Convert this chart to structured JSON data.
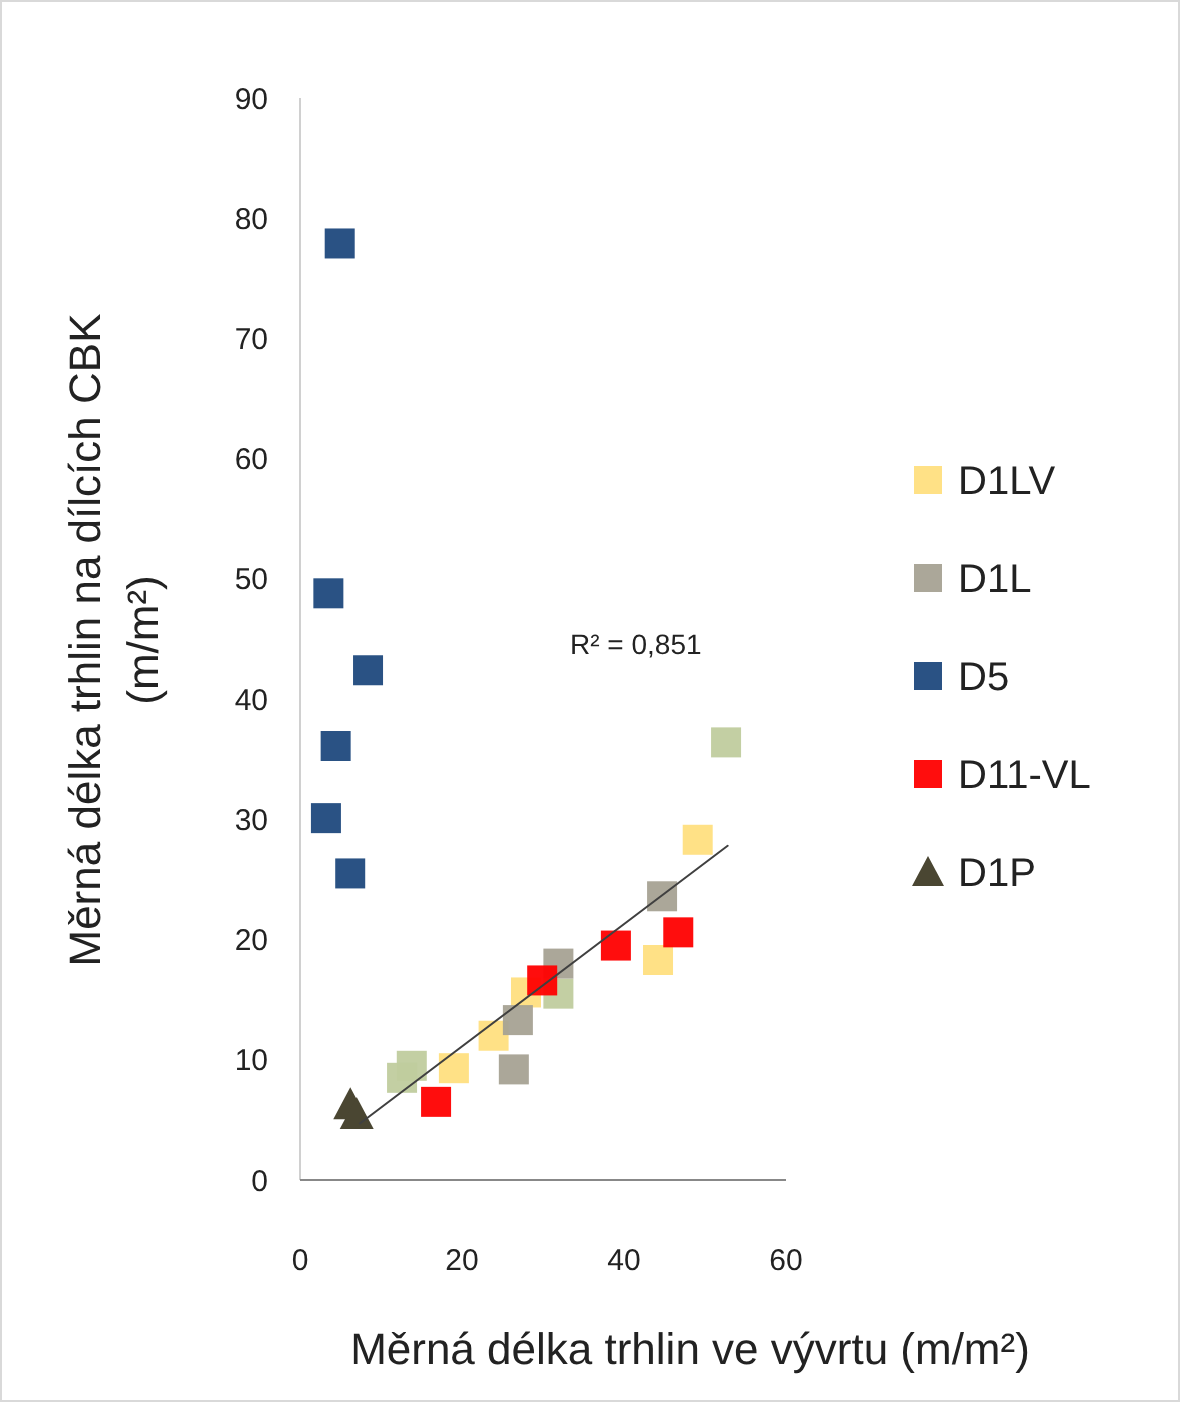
{
  "chart_data": {
    "type": "scatter",
    "xlabel": "Měrná délka trhlin ve vývrtu (m/m²)",
    "ylabel": "Měrná délka trhlin na dílcích CBK (m/m²)",
    "xlim": [
      0,
      60
    ],
    "xticks": [
      0,
      20,
      40,
      60
    ],
    "ylim": [
      0,
      90
    ],
    "yticks": [
      0,
      10,
      20,
      30,
      40,
      50,
      60,
      70,
      80,
      90
    ],
    "grid": false,
    "legend": "right",
    "marker": "square",
    "annotations": [
      "R² = 0,851"
    ],
    "series": [
      {
        "color": "#c0cc9e",
        "x": [
          52.6,
          13.8,
          12.6,
          31.9
        ],
        "values": [
          36.4,
          9.5,
          8.5,
          15.5
        ]
      },
      {
        "name": "D1LV",
        "color": "#ffdf80",
        "x": [
          49.1,
          44.2,
          27.9,
          23.9,
          19.0
        ],
        "values": [
          28.3,
          18.3,
          15.6,
          12.0,
          9.3
        ]
      },
      {
        "name": "D1L",
        "color": "#a6a293",
        "x": [
          44.7,
          31.9,
          26.9,
          26.4
        ],
        "values": [
          23.6,
          18.0,
          13.3,
          9.2
        ]
      },
      {
        "name": "D5",
        "color": "#1f497d",
        "x": [
          4.9,
          3.5,
          8.4,
          4.4,
          3.2,
          6.2
        ],
        "values": [
          77.9,
          48.8,
          42.4,
          36.1,
          30.1,
          25.5
        ]
      },
      {
        "name": "D11-VL",
        "color": "#ff0000",
        "x": [
          39.0,
          46.7,
          29.9,
          16.8
        ],
        "values": [
          19.5,
          20.6,
          16.6,
          6.5
        ]
      },
      {
        "name": "D1P",
        "color": "#4a4632",
        "marker": "triangle",
        "x": [
          6.2,
          7.0
        ],
        "values": [
          6.3,
          5.5
        ]
      },
      {
        "type": "line",
        "color": "#404040",
        "marker": "none",
        "x": [
          7.4,
          52.8
        ],
        "values": [
          4.7,
          27.8
        ]
      }
    ]
  }
}
